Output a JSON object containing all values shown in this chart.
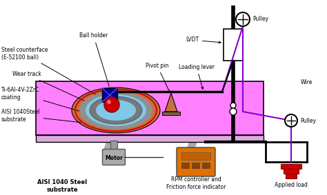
{
  "bg_color": "#ffffff",
  "table_color": "#ff80ff",
  "table_edge": "#000000",
  "table_side_color": "#cc60cc",
  "disc_outer_color": "#c87040",
  "disc_mid_color": "#909090",
  "disc_inner_color": "#80c8e8",
  "wear_track_color": "#707070",
  "ball_color": "#cc0000",
  "ball_holder_color": "#00008b",
  "motor_color": "#a0a0a0",
  "rpm_controller_color": "#e07000",
  "applied_load_color": "#cc0000",
  "wire_color": "#8800cc",
  "pivot_color": "#c87040",
  "support_color": "#000000",
  "labels": {
    "ball_holder": "Ball holder",
    "steel_counterface": "Steel counterface\n(E-52100 ball)",
    "wear_track": "Wear track",
    "ti_coating": "Ti-6Al-4V-2ZrC\ncoating",
    "aisi_substrate": "AISI 1040Steel\nsubstrate",
    "pivot_pin": "Pivot pin",
    "loading_lever": "Loading lever",
    "lvdt": "LVDT",
    "pulley_top": "Pulley",
    "pulley_bot": "Pulley",
    "wire": "Wire",
    "applied_load": "Applied load",
    "motor": "Motor",
    "rpm": "RPM controller and\nFriction force indicator",
    "aisi_bottom": "AISI 1040 Steel\nsubstrate"
  }
}
